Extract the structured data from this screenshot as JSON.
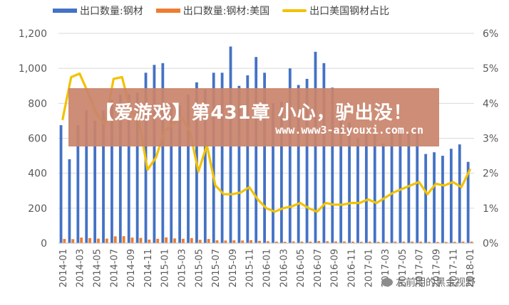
{
  "chart_data": {
    "type": "bar",
    "legend_position": "top",
    "categories": [
      "2014-01",
      "2014-02",
      "2014-03",
      "2014-04",
      "2014-05",
      "2014-06",
      "2014-07",
      "2014-08",
      "2014-09",
      "2014-10",
      "2014-11",
      "2014-12",
      "2015-01",
      "2015-02",
      "2015-03",
      "2015-04",
      "2015-05",
      "2015-06",
      "2015-07",
      "2015-08",
      "2015-09",
      "2015-10",
      "2015-11",
      "2015-12",
      "2016-01",
      "2016-02",
      "2016-03",
      "2016-04",
      "2016-05",
      "2016-06",
      "2016-07",
      "2016-08",
      "2016-09",
      "2016-10",
      "2016-11",
      "2016-12",
      "2017-01",
      "2017-02",
      "2017-03",
      "2017-04",
      "2017-05",
      "2017-06",
      "2017-07",
      "2017-08",
      "2017-09",
      "2017-10",
      "2017-11",
      "2017-12",
      "2018-01"
    ],
    "x_tick_labels": [
      "2014-01",
      "2014-03",
      "2014-05",
      "2014-07",
      "2014-09",
      "2014-11",
      "2015-01",
      "2015-03",
      "2015-05",
      "2015-07",
      "2015-09",
      "2015-11",
      "2016-01",
      "2016-03",
      "2016-05",
      "2016-07",
      "2016-09",
      "2016-11",
      "2017-01",
      "2017-03",
      "2017-05",
      "2017-07",
      "2017-09",
      "2017-11",
      "2018-01"
    ],
    "y_left": {
      "min": 0,
      "max": 1200,
      "ticks": [
        "0",
        "200",
        "400",
        "600",
        "800",
        "1,000",
        "1,200"
      ]
    },
    "y_right": {
      "min": 0,
      "max": 6,
      "ticks": [
        "0%",
        "1%",
        "2%",
        "3%",
        "4%",
        "5%",
        "6%"
      ]
    },
    "grid": true,
    "series": [
      {
        "name": "出口数量:钢材",
        "kind": "bar",
        "axis": "left",
        "color": "#4472c4",
        "values": [
          675,
          480,
          675,
          760,
          700,
          760,
          820,
          850,
          850,
          860,
          975,
          1020,
          1030,
          800,
          790,
          850,
          920,
          880,
          975,
          975,
          1125,
          900,
          960,
          1065,
          975,
          800,
          810,
          1000,
          905,
          940,
          1095,
          1030,
          890,
          800,
          690,
          600,
          635,
          620,
          570,
          640,
          650,
          630,
          655,
          510,
          520,
          500,
          540,
          565,
          465
        ]
      },
      {
        "name": "出口数量:钢材:美国",
        "kind": "bar",
        "axis": "left",
        "color": "#ed7d31",
        "values": [
          24,
          23,
          32,
          29,
          26,
          26,
          39,
          40,
          32,
          30,
          20,
          25,
          33,
          27,
          25,
          29,
          19,
          24,
          16,
          15,
          16,
          15,
          17,
          13,
          11,
          9,
          8,
          10,
          9,
          9,
          12,
          11,
          10,
          10,
          9,
          8,
          9,
          8,
          8,
          9,
          9,
          9,
          9,
          7,
          7,
          7,
          8,
          9,
          9
        ]
      },
      {
        "name": "出口美国钢材占比",
        "kind": "line",
        "axis": "right",
        "color": "#f2c200",
        "values": [
          3.55,
          4.75,
          4.85,
          4.3,
          3.7,
          3.4,
          4.7,
          4.75,
          3.8,
          3.5,
          2.1,
          2.45,
          3.2,
          3.4,
          3.6,
          3.2,
          2.05,
          2.8,
          1.65,
          1.4,
          1.4,
          1.45,
          1.6,
          1.25,
          1.0,
          0.9,
          1.0,
          1.05,
          1.15,
          1.0,
          0.9,
          1.15,
          1.1,
          1.1,
          1.15,
          1.15,
          1.25,
          1.15,
          1.3,
          1.45,
          1.55,
          1.65,
          1.75,
          1.4,
          1.7,
          1.65,
          1.75,
          1.6,
          2.1
        ]
      }
    ]
  },
  "overlay": {
    "banner_title": "【爱游戏】第431章 小心，驴出没！",
    "banner_url": "www.www3-aiyouxi.com.cn",
    "watermark_text": "左前明的黑金视野",
    "watermark_icon": "wechat-icon",
    "banner_color": "#c9846c"
  }
}
